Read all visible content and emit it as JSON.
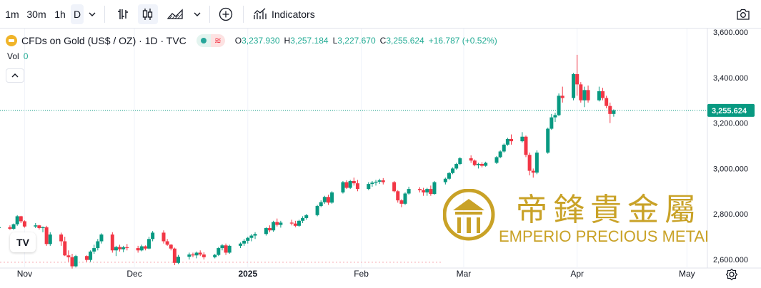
{
  "toolbar": {
    "intervals": [
      "1m",
      "30m",
      "1h",
      "D"
    ],
    "active_interval": "D",
    "indicators_label": "Indicators"
  },
  "legend": {
    "symbol": "CFDs on Gold (US$ / OZ) · 1D · TVC",
    "open_label": "O",
    "open": "3,237.930",
    "high_label": "H",
    "high": "3,257.184",
    "low_label": "L",
    "low": "3,227.670",
    "close_label": "C",
    "close": "3,255.624",
    "change": "+16.787 (+0.52%)",
    "vol_label": "Vol",
    "vol_value": "0"
  },
  "watermark": {
    "chinese": "帝鋒貴金屬",
    "english": "EMPERIO PRECIOUS METALS"
  },
  "colors": {
    "up": "#089981",
    "down": "#f23645",
    "accent": "#2962ff",
    "gold": "#c9a227"
  },
  "chart_data": {
    "type": "candlestick",
    "y_ticks": [
      "3,600.000",
      "3,400.000",
      "3,200.000",
      "3,000.000",
      "2,800.000",
      "2,600.000"
    ],
    "y_tick_values": [
      3600,
      3400,
      3200,
      3000,
      2800,
      2600
    ],
    "x_ticks": [
      "Nov",
      "Dec",
      "2025",
      "Feb",
      "Mar",
      "Apr",
      "May"
    ],
    "last_price_label": "3,255.624",
    "last_price": 3255.624,
    "x_start": "2024-10-25",
    "candles": [
      [
        2738,
        2745,
        2725,
        2742
      ],
      [
        2742,
        2750,
        2730,
        2735
      ],
      [
        2735,
        2758,
        2730,
        2755
      ],
      [
        2755,
        2795,
        2748,
        2790
      ],
      [
        2790,
        2792,
        2760,
        2768
      ],
      [
        2768,
        2772,
        2740,
        2745
      ],
      [
        2745,
        2760,
        2738,
        2750
      ],
      [
        2750,
        2752,
        2732,
        2738
      ],
      [
        2738,
        2745,
        2720,
        2742
      ],
      [
        2742,
        2748,
        2660,
        2668
      ],
      [
        2668,
        2720,
        2660,
        2710
      ],
      [
        2710,
        2718,
        2660,
        2680
      ],
      [
        2680,
        2700,
        2615,
        2618
      ],
      [
        2618,
        2640,
        2590,
        2610
      ],
      [
        2610,
        2625,
        2560,
        2570
      ],
      [
        2570,
        2620,
        2565,
        2615
      ],
      [
        2615,
        2618,
        2590,
        2598
      ],
      [
        2598,
        2640,
        2590,
        2635
      ],
      [
        2635,
        2665,
        2625,
        2650
      ],
      [
        2650,
        2690,
        2640,
        2680
      ],
      [
        2680,
        2715,
        2670,
        2710
      ],
      [
        2710,
        2720,
        2630,
        2640
      ],
      [
        2640,
        2660,
        2615,
        2655
      ],
      [
        2655,
        2665,
        2635,
        2645
      ],
      [
        2645,
        2660,
        2632,
        2654
      ],
      [
        2654,
        2668,
        2640,
        2650
      ],
      [
        2650,
        2660,
        2630,
        2640
      ],
      [
        2640,
        2665,
        2636,
        2658
      ],
      [
        2658,
        2662,
        2640,
        2648
      ],
      [
        2648,
        2700,
        2645,
        2690
      ],
      [
        2690,
        2725,
        2680,
        2718
      ],
      [
        2718,
        2728,
        2670,
        2680
      ],
      [
        2680,
        2690,
        2660,
        2665
      ],
      [
        2665,
        2668,
        2640,
        2648
      ],
      [
        2648,
        2652,
        2575,
        2585
      ],
      [
        2585,
        2620,
        2580,
        2612
      ],
      [
        2612,
        2630,
        2600,
        2622
      ],
      [
        2622,
        2630,
        2610,
        2618
      ],
      [
        2618,
        2635,
        2605,
        2630
      ],
      [
        2630,
        2640,
        2615,
        2622
      ],
      [
        2622,
        2632,
        2600,
        2610
      ],
      [
        2610,
        2625,
        2605,
        2620
      ],
      [
        2620,
        2655,
        2615,
        2650
      ],
      [
        2650,
        2668,
        2640,
        2662
      ],
      [
        2662,
        2670,
        2620,
        2630
      ],
      [
        2630,
        2665,
        2625,
        2660
      ],
      [
        2660,
        2675,
        2650,
        2670
      ],
      [
        2670,
        2690,
        2660,
        2682
      ],
      [
        2682,
        2700,
        2670,
        2695
      ],
      [
        2695,
        2712,
        2680,
        2705
      ],
      [
        2705,
        2720,
        2690,
        2712
      ],
      [
        2712,
        2742,
        2705,
        2738
      ],
      [
        2738,
        2750,
        2720,
        2728
      ],
      [
        2728,
        2770,
        2722,
        2765
      ],
      [
        2765,
        2780,
        2745,
        2752
      ],
      [
        2752,
        2770,
        2740,
        2762
      ],
      [
        2762,
        2775,
        2750,
        2758
      ],
      [
        2758,
        2770,
        2742,
        2748
      ],
      [
        2748,
        2775,
        2744,
        2770
      ],
      [
        2770,
        2790,
        2760,
        2782
      ],
      [
        2782,
        2800,
        2775,
        2795
      ],
      [
        2795,
        2840,
        2790,
        2835
      ],
      [
        2835,
        2860,
        2830,
        2852
      ],
      [
        2852,
        2880,
        2845,
        2875
      ],
      [
        2875,
        2885,
        2840,
        2850
      ],
      [
        2850,
        2900,
        2845,
        2895
      ],
      [
        2895,
        2945,
        2890,
        2940
      ],
      [
        2940,
        2948,
        2910,
        2915
      ],
      [
        2915,
        2950,
        2910,
        2945
      ],
      [
        2945,
        2960,
        2925,
        2935
      ],
      [
        2935,
        2950,
        2900,
        2910
      ],
      [
        2910,
        2940,
        2905,
        2932
      ],
      [
        2932,
        2945,
        2920,
        2938
      ],
      [
        2938,
        2950,
        2925,
        2942
      ],
      [
        2942,
        2955,
        2932,
        2948
      ],
      [
        2948,
        2958,
        2930,
        2940
      ],
      [
        2940,
        2945,
        2895,
        2900
      ],
      [
        2900,
        2905,
        2850,
        2860
      ],
      [
        2860,
        2865,
        2830,
        2845
      ],
      [
        2845,
        2895,
        2840,
        2890
      ],
      [
        2890,
        2920,
        2885,
        2910
      ],
      [
        2910,
        2918,
        2895,
        2905
      ],
      [
        2905,
        2915,
        2880,
        2895
      ],
      [
        2895,
        2915,
        2880,
        2910
      ],
      [
        2910,
        2925,
        2880,
        2888
      ],
      [
        2888,
        2945,
        2885,
        2940
      ],
      [
        2940,
        2960,
        2930,
        2955
      ],
      [
        2955,
        2985,
        2950,
        2980
      ],
      [
        2980,
        3005,
        2975,
        3000
      ],
      [
        3000,
        3025,
        2995,
        3020
      ],
      [
        3020,
        3050,
        3015,
        3045
      ],
      [
        3045,
        3058,
        3025,
        3035
      ],
      [
        3035,
        3040,
        3010,
        3015
      ],
      [
        3015,
        3025,
        3000,
        3020
      ],
      [
        3020,
        3028,
        3005,
        3012
      ],
      [
        3012,
        3030,
        3008,
        3025
      ],
      [
        3025,
        3055,
        3020,
        3050
      ],
      [
        3050,
        3080,
        3045,
        3075
      ],
      [
        3075,
        3110,
        3070,
        3105
      ],
      [
        3105,
        3135,
        3100,
        3130
      ],
      [
        3130,
        3150,
        3105,
        3120
      ],
      [
        3120,
        3160,
        3115,
        3140
      ],
      [
        3140,
        3145,
        3050,
        3060
      ],
      [
        3060,
        3070,
        2970,
        2990
      ],
      [
        2990,
        3000,
        2960,
        2982
      ],
      [
        2982,
        3080,
        2975,
        3070
      ],
      [
        3070,
        3180,
        3065,
        3175
      ],
      [
        3175,
        3240,
        3170,
        3225
      ],
      [
        3225,
        3245,
        3205,
        3235
      ],
      [
        3235,
        3330,
        3230,
        3320
      ],
      [
        3320,
        3360,
        3290,
        3310
      ],
      [
        3310,
        3420,
        3300,
        3415
      ],
      [
        3415,
        3500,
        3320,
        3370
      ],
      [
        3370,
        3380,
        3290,
        3300
      ],
      [
        3300,
        3360,
        3270,
        3345
      ],
      [
        3345,
        3365,
        3290,
        3300
      ],
      [
        3300,
        3360,
        3295,
        3340
      ],
      [
        3340,
        3355,
        3300,
        3310
      ],
      [
        3310,
        3320,
        3265,
        3275
      ],
      [
        3275,
        3290,
        3200,
        3240
      ],
      [
        3240,
        3260,
        3228,
        3256
      ]
    ]
  }
}
